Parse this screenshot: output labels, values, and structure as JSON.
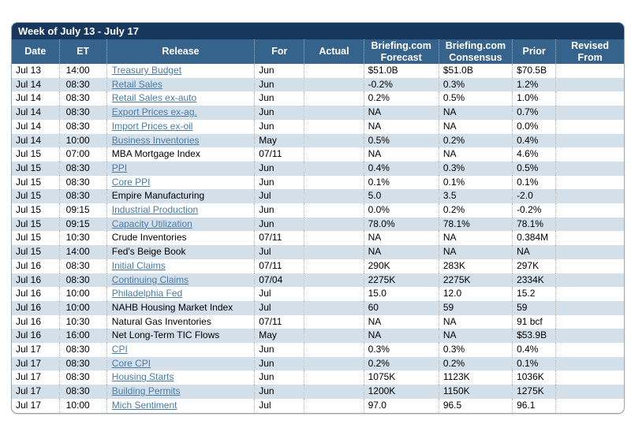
{
  "title_bar": {
    "label": "Week of July 13 - July 17"
  },
  "colors": {
    "title_bar_bg": "#17375d",
    "header_bg": "#35638b",
    "alt_row_bg": "#d3dfe9",
    "link_color": "#4a7ba7",
    "outer_border": "#9aa3ab"
  },
  "table": {
    "columns": [
      {
        "key": "date",
        "label": "Date"
      },
      {
        "key": "et",
        "label": "ET"
      },
      {
        "key": "release",
        "label": "Release"
      },
      {
        "key": "for",
        "label": "For"
      },
      {
        "key": "actual",
        "label": "Actual"
      },
      {
        "key": "forecast",
        "label": "Briefing.com Forecast"
      },
      {
        "key": "consensus",
        "label": "Briefing.com Consensus"
      },
      {
        "key": "prior",
        "label": "Prior"
      },
      {
        "key": "revised",
        "label": "Revised From"
      }
    ],
    "rows": [
      {
        "date": "Jul 13",
        "et": "14:00",
        "release": "Treasury Budget",
        "link": true,
        "for": "Jun",
        "actual": "",
        "forecast": "$51.0B",
        "consensus": "$51.0B",
        "prior": "$70.5B",
        "revised": ""
      },
      {
        "date": "Jul 14",
        "et": "08:30",
        "release": "Retail Sales",
        "link": true,
        "for": "Jun",
        "actual": "",
        "forecast": "-0.2%",
        "consensus": "0.3%",
        "prior": "1.2%",
        "revised": ""
      },
      {
        "date": "Jul 14",
        "et": "08:30",
        "release": "Retail Sales ex-auto",
        "link": true,
        "for": "Jun",
        "actual": "",
        "forecast": "0.2%",
        "consensus": "0.5%",
        "prior": "1.0%",
        "revised": ""
      },
      {
        "date": "Jul 14",
        "et": "08:30",
        "release": "Export Prices ex-ag.",
        "link": true,
        "for": "Jun",
        "actual": "",
        "forecast": "NA",
        "consensus": "NA",
        "prior": "0.7%",
        "revised": ""
      },
      {
        "date": "Jul 14",
        "et": "08:30",
        "release": "Import Prices ex-oil",
        "link": true,
        "for": "Jun",
        "actual": "",
        "forecast": "NA",
        "consensus": "NA",
        "prior": "0.0%",
        "revised": ""
      },
      {
        "date": "Jul 14",
        "et": "10:00",
        "release": "Business Inventories",
        "link": true,
        "for": "May",
        "actual": "",
        "forecast": "0.5%",
        "consensus": "0.2%",
        "prior": "0.4%",
        "revised": ""
      },
      {
        "date": "Jul 15",
        "et": "07:00",
        "release": "MBA Mortgage Index",
        "link": false,
        "for": "07/11",
        "actual": "",
        "forecast": "NA",
        "consensus": "NA",
        "prior": "4.6%",
        "revised": ""
      },
      {
        "date": "Jul 15",
        "et": "08:30",
        "release": "PPI",
        "link": true,
        "for": "Jun",
        "actual": "",
        "forecast": "0.4%",
        "consensus": "0.3%",
        "prior": "0.5%",
        "revised": ""
      },
      {
        "date": "Jul 15",
        "et": "08:30",
        "release": "Core PPI",
        "link": true,
        "for": "Jun",
        "actual": "",
        "forecast": "0.1%",
        "consensus": "0.1%",
        "prior": "0.1%",
        "revised": ""
      },
      {
        "date": "Jul 15",
        "et": "08:30",
        "release": "Empire Manufacturing",
        "link": false,
        "for": "Jul",
        "actual": "",
        "forecast": "5.0",
        "consensus": "3.5",
        "prior": "-2.0",
        "revised": ""
      },
      {
        "date": "Jul 15",
        "et": "09:15",
        "release": "Industrial Production",
        "link": true,
        "for": "Jun",
        "actual": "",
        "forecast": "0.0%",
        "consensus": "0.2%",
        "prior": "-0.2%",
        "revised": ""
      },
      {
        "date": "Jul 15",
        "et": "09:15",
        "release": "Capacity Utilization",
        "link": true,
        "for": "Jun",
        "actual": "",
        "forecast": "78.0%",
        "consensus": "78.1%",
        "prior": "78.1%",
        "revised": ""
      },
      {
        "date": "Jul 15",
        "et": "10:30",
        "release": "Crude Inventories",
        "link": false,
        "for": "07/11",
        "actual": "",
        "forecast": "NA",
        "consensus": "NA",
        "prior": "0.384M",
        "revised": ""
      },
      {
        "date": "Jul 15",
        "et": "14:00",
        "release": "Fed's Beige Book",
        "link": false,
        "for": "Jul",
        "actual": "",
        "forecast": "NA",
        "consensus": "NA",
        "prior": "NA",
        "revised": ""
      },
      {
        "date": "Jul 16",
        "et": "08:30",
        "release": "Initial Claims",
        "link": true,
        "for": "07/11",
        "actual": "",
        "forecast": "290K",
        "consensus": "283K",
        "prior": "297K",
        "revised": ""
      },
      {
        "date": "Jul 16",
        "et": "08:30",
        "release": "Continuing Claims",
        "link": true,
        "for": "07/04",
        "actual": "",
        "forecast": "2275K",
        "consensus": "2275K",
        "prior": "2334K",
        "revised": ""
      },
      {
        "date": "Jul 16",
        "et": "10:00",
        "release": "Philadelphia Fed",
        "link": true,
        "for": "Jul",
        "actual": "",
        "forecast": "15.0",
        "consensus": "12.0",
        "prior": "15.2",
        "revised": ""
      },
      {
        "date": "Jul 16",
        "et": "10:00",
        "release": "NAHB Housing Market Index",
        "link": false,
        "for": "Jul",
        "actual": "",
        "forecast": "60",
        "consensus": "59",
        "prior": "59",
        "revised": ""
      },
      {
        "date": "Jul 16",
        "et": "10:30",
        "release": "Natural Gas Inventories",
        "link": false,
        "for": "07/11",
        "actual": "",
        "forecast": "NA",
        "consensus": "NA",
        "prior": "91 bcf",
        "revised": ""
      },
      {
        "date": "Jul 16",
        "et": "16:00",
        "release": "Net Long-Term TIC Flows",
        "link": false,
        "for": "May",
        "actual": "",
        "forecast": "NA",
        "consensus": "NA",
        "prior": "$53.9B",
        "revised": ""
      },
      {
        "date": "Jul 17",
        "et": "08:30",
        "release": "CPI",
        "link": true,
        "for": "Jun",
        "actual": "",
        "forecast": "0.3%",
        "consensus": "0.3%",
        "prior": "0.4%",
        "revised": ""
      },
      {
        "date": "Jul 17",
        "et": "08:30",
        "release": "Core CPI",
        "link": true,
        "for": "Jun",
        "actual": "",
        "forecast": "0.2%",
        "consensus": "0.2%",
        "prior": "0.1%",
        "revised": ""
      },
      {
        "date": "Jul 17",
        "et": "08:30",
        "release": "Housing Starts",
        "link": true,
        "for": "Jun",
        "actual": "",
        "forecast": "1075K",
        "consensus": "1123K",
        "prior": "1036K",
        "revised": ""
      },
      {
        "date": "Jul 17",
        "et": "08:30",
        "release": "Building Permits",
        "link": true,
        "for": "Jun",
        "actual": "",
        "forecast": "1200K",
        "consensus": "1150K",
        "prior": "1275K",
        "revised": ""
      },
      {
        "date": "Jul 17",
        "et": "10:00",
        "release": "Mich Sentiment",
        "link": true,
        "for": "Jul",
        "actual": "",
        "forecast": "97.0",
        "consensus": "96.5",
        "prior": "96.1",
        "revised": ""
      }
    ]
  }
}
